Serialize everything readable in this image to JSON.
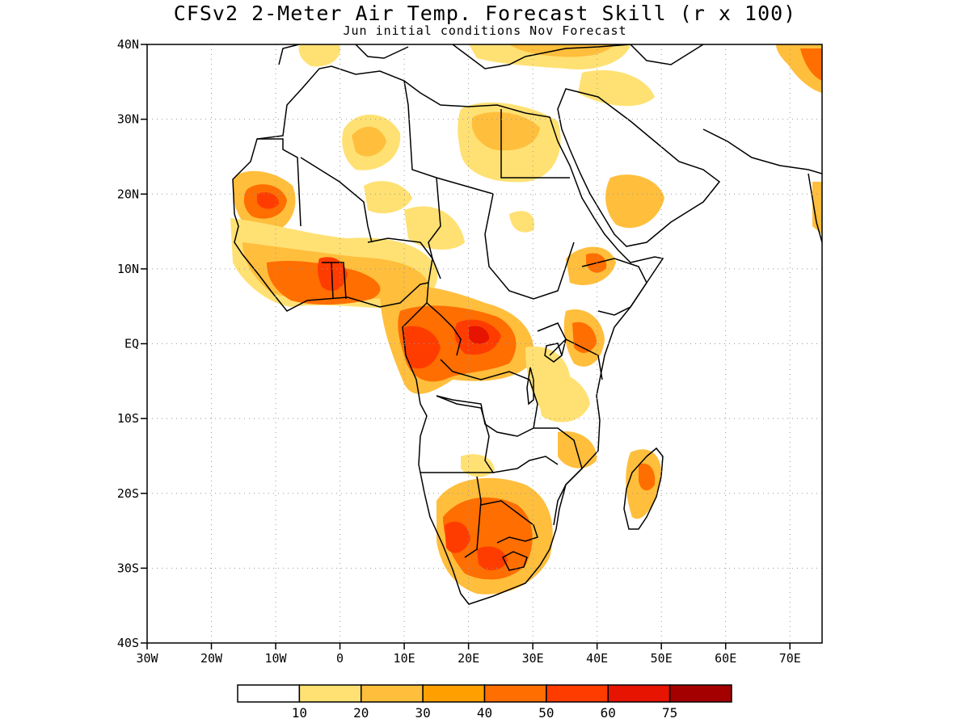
{
  "title": "CFSv2 2-Meter Air Temp. Forecast Skill (r x 100)",
  "subtitle": "Jun initial conditions  Nov Forecast",
  "map": {
    "region": "Africa",
    "variable": "2-meter air temperature forecast skill",
    "lon_range": [
      -30,
      75
    ],
    "lat_range": [
      -40,
      40
    ],
    "lat_ticks": [
      {
        "value": 40,
        "label": "40N"
      },
      {
        "value": 30,
        "label": "30N"
      },
      {
        "value": 20,
        "label": "20N"
      },
      {
        "value": 10,
        "label": "10N"
      },
      {
        "value": 0,
        "label": "EQ"
      },
      {
        "value": -10,
        "label": "10S"
      },
      {
        "value": -20,
        "label": "20S"
      },
      {
        "value": -30,
        "label": "30S"
      },
      {
        "value": -40,
        "label": "40S"
      }
    ],
    "lon_ticks": [
      {
        "value": -30,
        "label": "30W"
      },
      {
        "value": -20,
        "label": "20W"
      },
      {
        "value": -10,
        "label": "10W"
      },
      {
        "value": 0,
        "label": "0"
      },
      {
        "value": 10,
        "label": "10E"
      },
      {
        "value": 20,
        "label": "20E"
      },
      {
        "value": 30,
        "label": "30E"
      },
      {
        "value": 40,
        "label": "40E"
      },
      {
        "value": 50,
        "label": "50E"
      },
      {
        "value": 60,
        "label": "60E"
      },
      {
        "value": 70,
        "label": "70E"
      }
    ],
    "grid": "dotted"
  },
  "colorbar": {
    "thresholds": [
      "10",
      "20",
      "30",
      "40",
      "50",
      "60",
      "75"
    ],
    "colors": [
      "#ffffff",
      "#ffe173",
      "#ffbe3c",
      "#ffa000",
      "#ff6e00",
      "#ff3c00",
      "#e61400",
      "#a50000"
    ]
  }
}
